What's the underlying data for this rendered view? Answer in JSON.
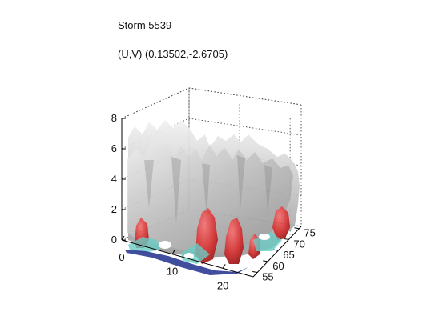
{
  "chart_data": {
    "type": "surface",
    "title": "Storm 5539",
    "subtitle": "(U,V) (0.13502,-2.6705)",
    "x_ticks": [
      0,
      10,
      20
    ],
    "y_ticks": [
      55,
      60,
      65,
      70,
      75
    ],
    "z_ticks": [
      0,
      2,
      4,
      6,
      8
    ],
    "xlim": [
      0,
      26
    ],
    "ylim": [
      53,
      76
    ],
    "zlim": [
      0,
      8
    ],
    "grid": true,
    "colors": {
      "isosurface_high": "#c8c8c8",
      "isosurface_low": "#d22a2a",
      "base_cyan": "#5fc8c0",
      "base_blue": "#1a2a8a"
    }
  }
}
